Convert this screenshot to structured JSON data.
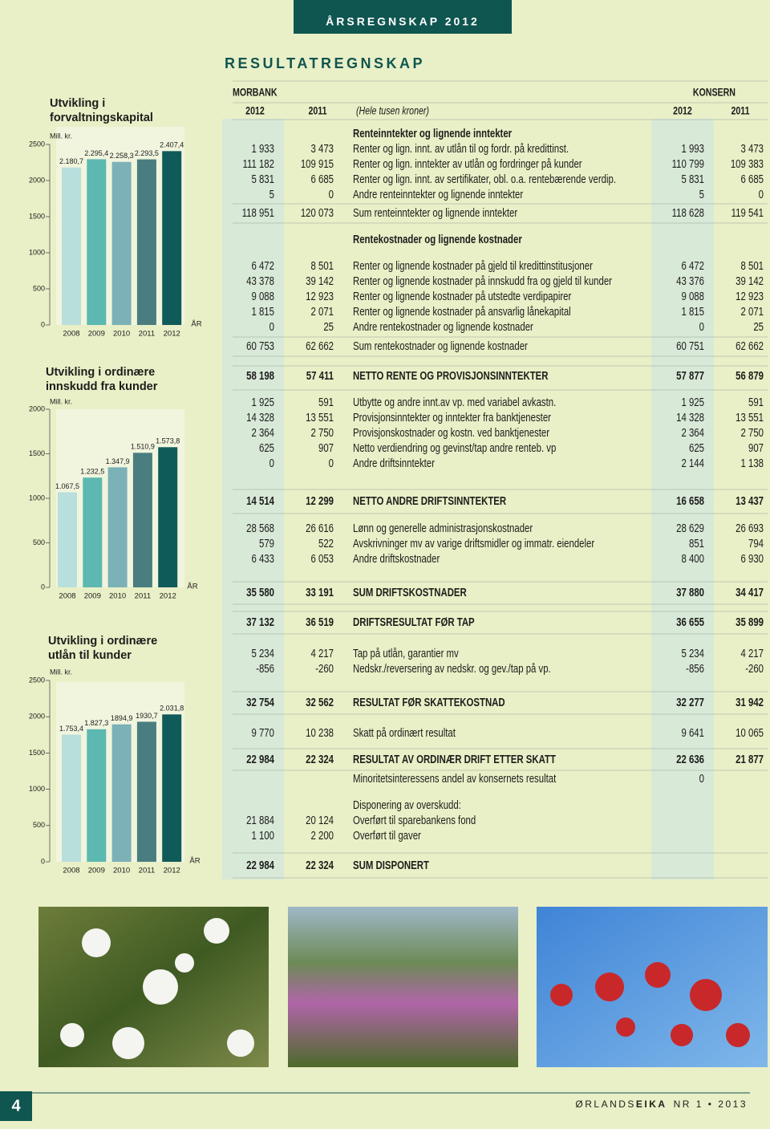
{
  "header": {
    "banner": "ÅRSREGNSKAP 2012",
    "title": "RESULTATREGNSKAP"
  },
  "chart_data": [
    {
      "type": "bar",
      "title": "Utvikling i forvaltningskapital",
      "unit": "Mill. kr.",
      "x_label": "ÅR",
      "categories": [
        "2008",
        "2009",
        "2010",
        "2011",
        "2012"
      ],
      "values": [
        2180.7,
        2295.4,
        2258.3,
        2293.5,
        2407.4
      ],
      "value_labels": [
        "2.180,7",
        "2.295,4",
        "2.258,3",
        "2.293,5",
        "2.407,4"
      ],
      "colors": [
        "#b9dfdc",
        "#5cb8b0",
        "#7cb1b8",
        "#4a7d7f",
        "#0f5b5a"
      ],
      "ylim": [
        0,
        2500
      ],
      "yticks": [
        0,
        500,
        1000,
        1500,
        2000,
        2500
      ]
    },
    {
      "type": "bar",
      "title": "Utvikling i ordinære innskudd fra kunder",
      "unit": "Mill. kr.",
      "x_label": "ÅR",
      "categories": [
        "2008",
        "2009",
        "2010",
        "2011",
        "2012"
      ],
      "values": [
        1067.5,
        1232.5,
        1347.9,
        1510.9,
        1573.8
      ],
      "value_labels": [
        "1.067,5",
        "1.232,5",
        "1.347,9",
        "1.510,9",
        "1.573,8"
      ],
      "colors": [
        "#b9dfdc",
        "#5cb8b0",
        "#7cb1b8",
        "#4a7d7f",
        "#0f5b5a"
      ],
      "ylim": [
        0,
        2000
      ],
      "yticks": [
        0,
        500,
        1000,
        1500,
        2000
      ]
    },
    {
      "type": "bar",
      "title": "Utvikling i ordinære utlån til kunder",
      "unit": "Mill. kr.",
      "x_label": "ÅR",
      "categories": [
        "2008",
        "2009",
        "2010",
        "2011",
        "2012"
      ],
      "values": [
        1753.4,
        1827.3,
        1894.9,
        1930.7,
        2031.8
      ],
      "value_labels": [
        "1.753,4",
        "1.827,3",
        "1894,9",
        "1930,7",
        "2.031,8"
      ],
      "colors": [
        "#b9dfdc",
        "#5cb8b0",
        "#7cb1b8",
        "#4a7d7f",
        "#0f5b5a"
      ],
      "ylim": [
        0,
        2500
      ],
      "yticks": [
        0,
        500,
        1000,
        1500,
        2000,
        2500
      ]
    }
  ],
  "table": {
    "groups": [
      "MORBANK",
      "KONSERN"
    ],
    "columns": [
      "2012",
      "2011",
      "(Hele tusen kroner)",
      "2012",
      "2011"
    ],
    "rows": [
      {
        "cells": [
          null,
          null,
          "Renteinntekter og lignende inntekter",
          null,
          null
        ],
        "bold": true
      },
      {
        "cells": [
          "1 933",
          "3 473",
          "Renter og lign. innt. av utlån til og fordr. på kredittinst.",
          "1 993",
          "3 473"
        ]
      },
      {
        "cells": [
          "111 182",
          "109 915",
          "Renter og lign. inntekter av utlån og fordringer på kunder",
          "110 799",
          "109 383"
        ]
      },
      {
        "cells": [
          "5 831",
          "6 685",
          "Renter og lign. innt. av sertifikater, obl. o.a. rentebærende verdip.",
          "5 831",
          "6 685"
        ]
      },
      {
        "cells": [
          "5",
          "0",
          "Andre renteinntekter og lignende inntekter",
          "5",
          "0"
        ]
      },
      {
        "cells": [
          "118 951",
          "120 073",
          "Sum renteinntekter og lignende inntekter",
          "118 628",
          "119 541"
        ]
      },
      {
        "cells": [
          null,
          null,
          "Rentekostnader og lignende kostnader",
          null,
          null
        ],
        "bold": true
      },
      {
        "cells": [
          "6 472",
          "8 501",
          "Renter og lignende kostnader på gjeld til kredittinstitusjoner",
          "6 472",
          "8 501"
        ]
      },
      {
        "cells": [
          "43 378",
          "39 142",
          "Renter og lignende kostnader på innskudd fra og gjeld til kunder",
          "43 376",
          "39 142"
        ]
      },
      {
        "cells": [
          "9 088",
          "12 923",
          "Renter og lignende kostnader på utstedte verdipapirer",
          "9 088",
          "12 923"
        ]
      },
      {
        "cells": [
          "1 815",
          "2 071",
          "Renter og lignende kostnader på ansvarlig lånekapital",
          "1 815",
          "2 071"
        ]
      },
      {
        "cells": [
          "0",
          "25",
          "Andre rentekostnader og lignende kostnader",
          "0",
          "25"
        ]
      },
      {
        "cells": [
          "60 753",
          "62 662",
          "Sum rentekostnader og lignende kostnader",
          "60 751",
          "62 662"
        ]
      },
      {
        "cells": [
          "58 198",
          "57 411",
          "NETTO RENTE OG PROVISJONSINNTEKTER",
          "57 877",
          "56 879"
        ],
        "bold": true
      },
      {
        "cells": [
          "1 925",
          "591",
          "Utbytte og andre innt.av vp. med variabel avkastn.",
          "1 925",
          "591"
        ]
      },
      {
        "cells": [
          "14 328",
          "13 551",
          "Provisjonsinntekter og inntekter fra banktjenester",
          "14 328",
          "13 551"
        ]
      },
      {
        "cells": [
          "2 364",
          "2 750",
          "Provisjonskostnader og kostn. ved banktjenester",
          "2 364",
          "2 750"
        ]
      },
      {
        "cells": [
          "625",
          "907",
          "Netto verdiendring og gevinst/tap andre renteb. vp",
          "625",
          "907"
        ]
      },
      {
        "cells": [
          "0",
          "0",
          "Andre driftsinntekter",
          "2 144",
          "1 138"
        ]
      },
      {
        "cells": [
          "14 514",
          "12 299",
          "NETTO ANDRE DRIFTSINNTEKTER",
          "16 658",
          "13 437"
        ],
        "bold": true
      },
      {
        "cells": [
          "28 568",
          "26 616",
          "Lønn og generelle administrasjonskostnader",
          "28 629",
          "26 693"
        ]
      },
      {
        "cells": [
          "579",
          "522",
          "Avskrivninger mv av varige driftsmidler og immatr. eiendeler",
          "851",
          "794"
        ]
      },
      {
        "cells": [
          "6 433",
          "6 053",
          "Andre driftskostnader",
          "8 400",
          "6 930"
        ]
      },
      {
        "cells": [
          "35 580",
          "33 191",
          "SUM DRIFTSKOSTNADER",
          "37 880",
          "34 417"
        ],
        "bold": true
      },
      {
        "cells": [
          "37 132",
          "36 519",
          "DRIFTSRESULTAT FØR TAP",
          "36 655",
          "35 899"
        ],
        "bold": true
      },
      {
        "cells": [
          "5 234",
          "4 217",
          "Tap på utlån, garantier mv",
          "5 234",
          "4 217"
        ]
      },
      {
        "cells": [
          "-856",
          "-260",
          "Nedskr./reversering av nedskr. og gev./tap på vp.",
          "-856",
          "-260"
        ]
      },
      {
        "cells": [
          "32 754",
          "32 562",
          "RESULTAT FØR SKATTEKOSTNAD",
          "32 277",
          "31 942"
        ],
        "bold": true
      },
      {
        "cells": [
          "9 770",
          "10 238",
          "Skatt på ordinært resultat",
          "9 641",
          "10 065"
        ]
      },
      {
        "cells": [
          "22 984",
          "22 324",
          "RESULTAT AV ORDINÆR DRIFT ETTER SKATT",
          "22 636",
          "21 877"
        ],
        "bold": true
      },
      {
        "cells": [
          null,
          null,
          "Minoritetsinteressens andel av konsernets resultat",
          "0",
          null
        ]
      },
      {
        "cells": [
          null,
          null,
          "Disponering av overskudd:",
          null,
          null
        ]
      },
      {
        "cells": [
          "21 884",
          "20 124",
          "Overført til sparebankens fond",
          null,
          null
        ]
      },
      {
        "cells": [
          "1 100",
          "2 200",
          "Overført til gaver",
          null,
          null
        ]
      },
      {
        "cells": [
          "22 984",
          "22 324",
          "SUM DISPONERT",
          null,
          null
        ],
        "bold": true
      }
    ]
  },
  "footer": {
    "page": "4",
    "magazine_light": "ØRLANDS",
    "magazine_bold": "EIKA",
    "issue": "NR 1 • 2013"
  }
}
